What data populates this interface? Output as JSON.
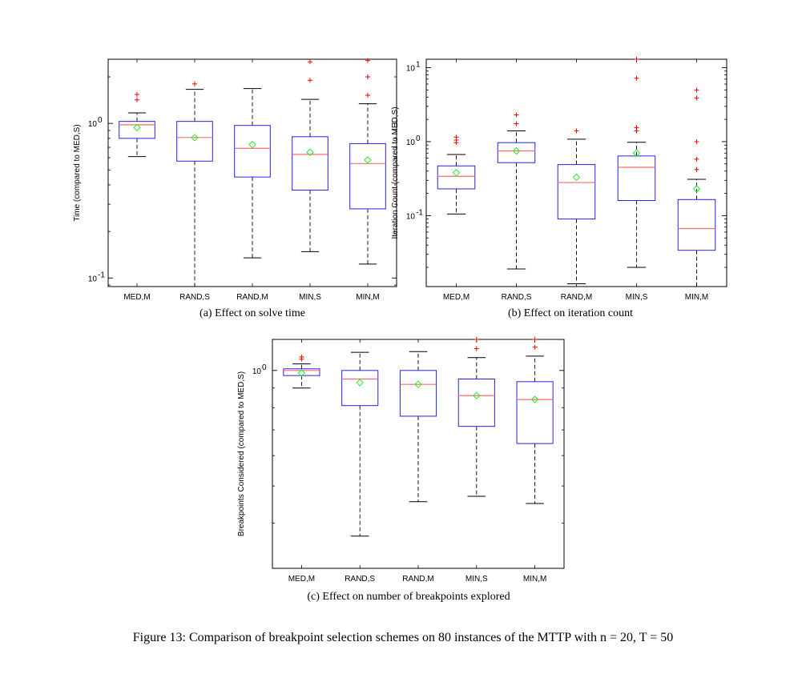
{
  "figure_caption": "Figure 13: Comparison of breakpoint selection schemes on 80 instances of the MTTP with n = 20, T = 50",
  "chart_data": [
    {
      "type": "box",
      "caption": "(a) Effect on solve time",
      "ylabel": "Time (compared to MED,S)",
      "yscale": "log",
      "ylim": [
        0.088,
        2.6
      ],
      "yticks": [
        {
          "value": 0.1,
          "label": "10",
          "exp": "-1"
        },
        {
          "value": 1,
          "label": "10",
          "exp": "0"
        }
      ],
      "categories": [
        "MED,M",
        "RAND,S",
        "RAND,M",
        "MIN,S",
        "MIN,M"
      ],
      "boxes": [
        {
          "q1": 0.8,
          "median": 0.98,
          "q3": 1.03,
          "whisker_low": 0.61,
          "whisker_high": 1.17,
          "mean": 0.94,
          "outliers": [
            1.42,
            1.54
          ]
        },
        {
          "q1": 0.57,
          "median": 0.81,
          "q3": 1.03,
          "whisker_low": 0.088,
          "whisker_high": 1.66,
          "mean": 0.81,
          "outliers": [
            1.8
          ]
        },
        {
          "q1": 0.45,
          "median": 0.69,
          "q3": 0.97,
          "whisker_low": 0.135,
          "whisker_high": 1.68,
          "mean": 0.73,
          "outliers": []
        },
        {
          "q1": 0.37,
          "median": 0.63,
          "q3": 0.82,
          "whisker_low": 0.148,
          "whisker_high": 1.43,
          "mean": 0.65,
          "outliers": [
            1.9,
            2.5
          ]
        },
        {
          "q1": 0.28,
          "median": 0.55,
          "q3": 0.74,
          "whisker_low": 0.123,
          "whisker_high": 1.34,
          "mean": 0.58,
          "outliers": [
            1.52,
            2.0,
            2.55
          ]
        }
      ]
    },
    {
      "type": "box",
      "caption": "(b) Effect on iteration count",
      "ylabel": "Iteration Count (compared to MED,S)",
      "yscale": "log",
      "ylim": [
        0.011,
        13
      ],
      "yticks": [
        {
          "value": 0.1,
          "label": "10",
          "exp": "-1"
        },
        {
          "value": 1,
          "label": "10",
          "exp": "0"
        },
        {
          "value": 10,
          "label": "10",
          "exp": "1"
        }
      ],
      "categories": [
        "MED,M",
        "RAND,S",
        "RAND,M",
        "MIN,S",
        "MIN,M"
      ],
      "boxes": [
        {
          "q1": 0.23,
          "median": 0.34,
          "q3": 0.47,
          "whisker_low": 0.105,
          "whisker_high": 0.67,
          "mean": 0.38,
          "outliers": [
            0.97,
            1.05,
            1.15
          ]
        },
        {
          "q1": 0.52,
          "median": 0.75,
          "q3": 0.97,
          "whisker_low": 0.019,
          "whisker_high": 1.4,
          "mean": 0.75,
          "outliers": [
            1.75,
            2.3
          ]
        },
        {
          "q1": 0.09,
          "median": 0.28,
          "q3": 0.49,
          "whisker_low": 0.012,
          "whisker_high": 1.08,
          "mean": 0.33,
          "outliers": [
            1.4
          ]
        },
        {
          "q1": 0.16,
          "median": 0.45,
          "q3": 0.64,
          "whisker_low": 0.02,
          "whisker_high": 0.98,
          "mean": 0.7,
          "outliers": [
            1.4,
            1.55,
            7.2,
            13
          ]
        },
        {
          "q1": 0.034,
          "median": 0.067,
          "q3": 0.165,
          "whisker_low": 0.011,
          "whisker_high": 0.31,
          "mean": 0.23,
          "outliers": [
            0.42,
            0.58,
            1.0,
            3.9,
            5.0
          ]
        }
      ]
    },
    {
      "type": "box",
      "caption": "(c) Effect on number of breakpoints explored",
      "ylabel": "Breakpoints Considered (compared to MED,S)",
      "yscale": "log",
      "ylim": [
        0.305,
        1.205
      ],
      "yticks": [
        {
          "value": 1,
          "label": "10",
          "exp": "0"
        }
      ],
      "categories": [
        "MED,M",
        "RAND,S",
        "RAND,M",
        "MIN,S",
        "MIN,M"
      ],
      "boxes": [
        {
          "q1": 0.97,
          "median": 1.0,
          "q3": 1.01,
          "whisker_low": 0.9,
          "whisker_high": 1.04,
          "mean": 0.985,
          "outliers": [
            1.07,
            1.085
          ]
        },
        {
          "q1": 0.81,
          "median": 0.95,
          "q3": 1.0,
          "whisker_low": 0.37,
          "whisker_high": 1.115,
          "mean": 0.93,
          "outliers": []
        },
        {
          "q1": 0.76,
          "median": 0.92,
          "q3": 1.0,
          "whisker_low": 0.455,
          "whisker_high": 1.12,
          "mean": 0.92,
          "outliers": []
        },
        {
          "q1": 0.715,
          "median": 0.86,
          "q3": 0.95,
          "whisker_low": 0.47,
          "whisker_high": 1.08,
          "mean": 0.86,
          "outliers": [
            1.14,
            1.205
          ]
        },
        {
          "q1": 0.645,
          "median": 0.84,
          "q3": 0.935,
          "whisker_low": 0.45,
          "whisker_high": 1.09,
          "mean": 0.84,
          "outliers": [
            1.15,
            1.205
          ]
        }
      ]
    }
  ],
  "colors": {
    "box": "#2323e6",
    "median": "#ff6a6a",
    "mean": "#22ee22",
    "outlier": "#ff0000",
    "whisker": "#000000",
    "frame": "#000000"
  }
}
